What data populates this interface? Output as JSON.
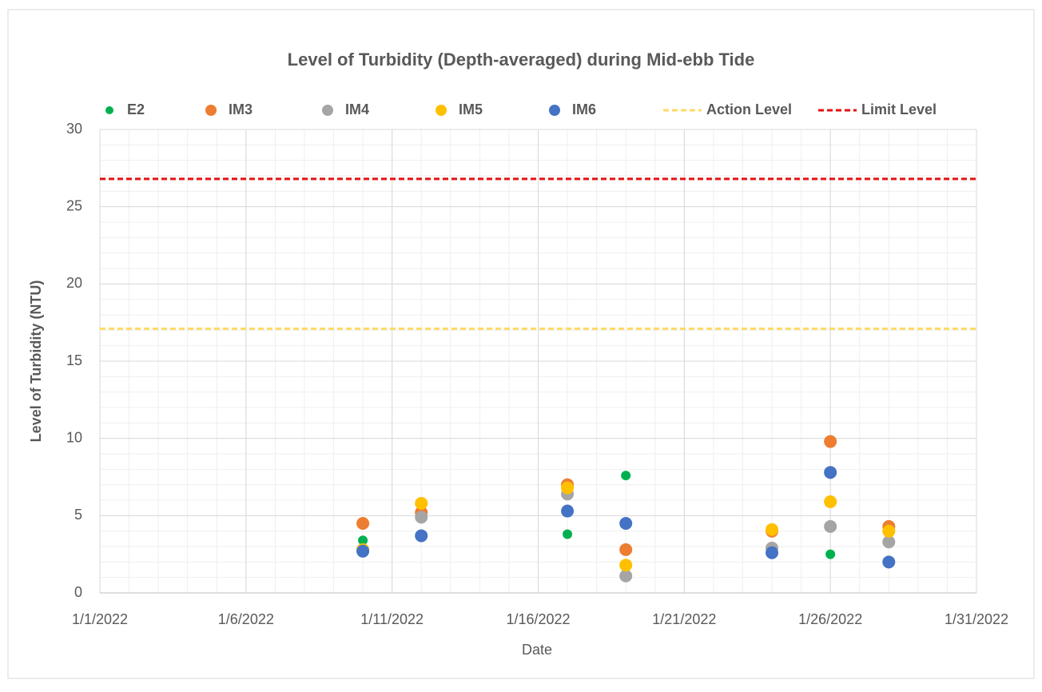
{
  "chart_data": {
    "type": "scatter",
    "title": "Level of Turbidity (Depth-averaged) during Mid-ebb Tide",
    "x_label": "Date",
    "y_label": "Level of Turbidity (NTU)",
    "xlim": [
      "2022-01-01",
      "2022-01-31"
    ],
    "xticks": [
      {
        "value": "2022-01-01",
        "label": "1/1/2022"
      },
      {
        "value": "2022-01-06",
        "label": "1/6/2022"
      },
      {
        "value": "2022-01-11",
        "label": "1/11/2022"
      },
      {
        "value": "2022-01-16",
        "label": "1/16/2022"
      },
      {
        "value": "2022-01-21",
        "label": "1/21/2022"
      },
      {
        "value": "2022-01-26",
        "label": "1/26/2022"
      },
      {
        "value": "2022-01-31",
        "label": "1/31/2022"
      }
    ],
    "ylim": [
      0,
      30
    ],
    "yticks": [
      0,
      5,
      10,
      15,
      20,
      25,
      30
    ],
    "grid": true,
    "x": [
      "2022-01-10",
      "2022-01-12",
      "2022-01-17",
      "2022-01-19",
      "2022-01-24",
      "2022-01-26",
      "2022-01-28"
    ],
    "series": [
      {
        "name": "E2",
        "color": "#00b050",
        "marker_size": 6,
        "values": [
          3.4,
          3.7,
          3.8,
          7.6,
          3.9,
          2.5,
          2.1
        ]
      },
      {
        "name": "IM3",
        "color": "#ed7d31",
        "marker_size": 8,
        "values": [
          4.5,
          5.2,
          7.0,
          2.8,
          4.0,
          9.8,
          4.3
        ]
      },
      {
        "name": "IM4",
        "color": "#a5a5a5",
        "marker_size": 8,
        "values": [
          2.8,
          4.9,
          6.4,
          1.1,
          2.9,
          4.3,
          3.3
        ]
      },
      {
        "name": "IM5",
        "color": "#ffc000",
        "marker_size": 8,
        "values": [
          2.8,
          5.8,
          6.8,
          1.8,
          4.1,
          5.9,
          4.0
        ]
      },
      {
        "name": "IM6",
        "color": "#4472c4",
        "marker_size": 8,
        "values": [
          2.7,
          3.7,
          5.3,
          4.5,
          2.6,
          7.8,
          2.0
        ]
      }
    ],
    "reference_lines": [
      {
        "name": "Action Level",
        "color": "#ffd966",
        "value": 17.1
      },
      {
        "name": "Limit Level",
        "color": "#e51010",
        "value": 26.8
      }
    ]
  }
}
